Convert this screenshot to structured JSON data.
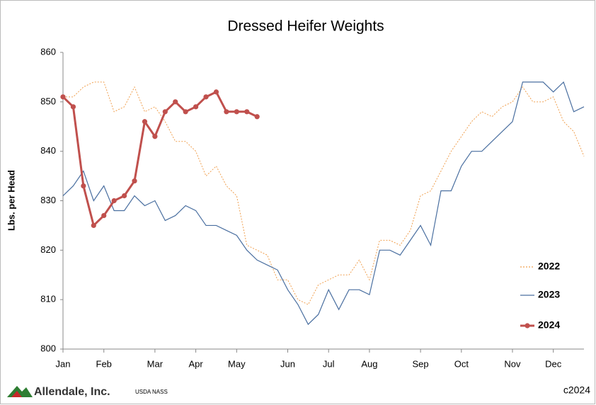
{
  "chart_data": {
    "type": "line",
    "title": "Dressed Heifer Weights",
    "y_label": "Lbs. per Head",
    "categories": [
      "Jan",
      null,
      null,
      null,
      "Feb",
      null,
      null,
      null,
      null,
      "Mar",
      null,
      null,
      null,
      "Apr",
      null,
      null,
      null,
      "May",
      null,
      null,
      null,
      null,
      "Jun",
      null,
      null,
      null,
      "Jul",
      null,
      null,
      null,
      "Aug",
      null,
      null,
      null,
      null,
      "Sep",
      null,
      null,
      null,
      "Oct",
      null,
      null,
      null,
      null,
      "Nov",
      null,
      null,
      null,
      "Dec",
      null,
      null,
      null
    ],
    "series": [
      {
        "name": "2022",
        "color": "#f0a050",
        "style": "dotted",
        "marker": false,
        "values": [
          851,
          851,
          853,
          854,
          854,
          848,
          849,
          853,
          848,
          849,
          846,
          842,
          842,
          840,
          835,
          837,
          833,
          831,
          821,
          820,
          819,
          814,
          814,
          810,
          809,
          813,
          814,
          815,
          815,
          818,
          814,
          822,
          822,
          821,
          824,
          831,
          832,
          836,
          840,
          843,
          846,
          848,
          847,
          849,
          850,
          853,
          850,
          850,
          851,
          846,
          844,
          839
        ]
      },
      {
        "name": "2023",
        "color": "#4a6fa0",
        "style": "solid",
        "marker": false,
        "values": [
          831,
          833,
          836,
          830,
          833,
          828,
          828,
          831,
          829,
          830,
          826,
          827,
          829,
          828,
          825,
          825,
          824,
          823,
          820,
          818,
          817,
          816,
          812,
          809,
          805,
          807,
          812,
          808,
          812,
          812,
          811,
          820,
          820,
          819,
          822,
          825,
          821,
          832,
          832,
          837,
          840,
          840,
          842,
          844,
          846,
          854,
          854,
          854,
          852,
          854,
          848,
          849
        ]
      },
      {
        "name": "2024",
        "color": "#c0504d",
        "style": "solid",
        "marker": true,
        "values": [
          851,
          849,
          833,
          825,
          827,
          830,
          831,
          834,
          846,
          843,
          848,
          850,
          848,
          849,
          851,
          852,
          848,
          848,
          848,
          847,
          null,
          null,
          null,
          null,
          null,
          null,
          null,
          null,
          null,
          null,
          null,
          null,
          null,
          null,
          null,
          null,
          null,
          null,
          null,
          null,
          null,
          null,
          null,
          null,
          null,
          null,
          null,
          null,
          null,
          null,
          null,
          null
        ]
      }
    ],
    "ylim": [
      800,
      860
    ],
    "yticks": [
      800,
      810,
      820,
      830,
      840,
      850,
      860
    ],
    "grid": false,
    "legend": "right",
    "brand": "Allendale, Inc.",
    "source": "USDA NASS",
    "copyright": "c2024"
  }
}
